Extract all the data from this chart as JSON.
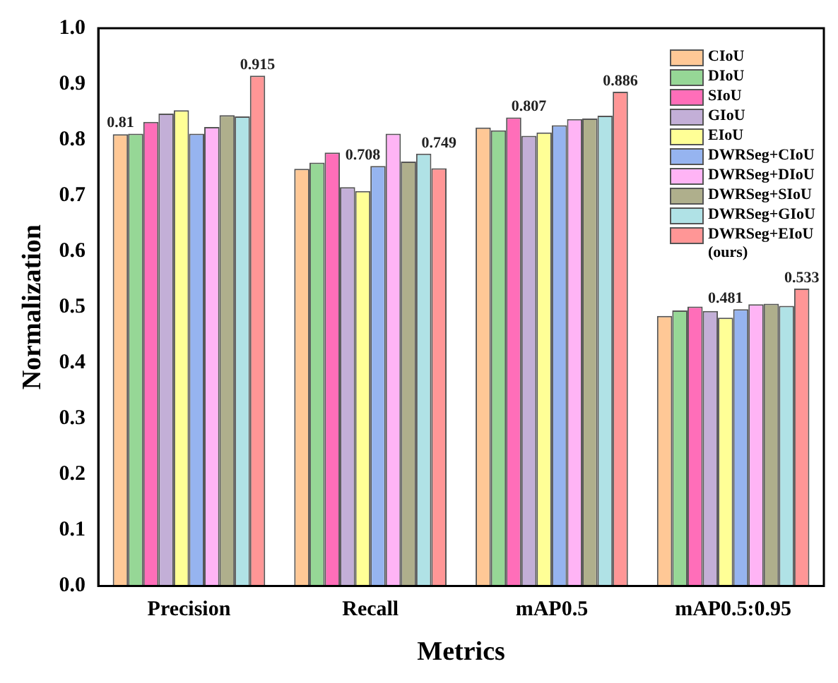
{
  "chart_data": {
    "type": "bar",
    "xlabel": "Metrics",
    "ylabel": "Normalization",
    "categories": [
      "Precision",
      "Recall",
      "mAP0.5",
      "mAP0.5:0.95"
    ],
    "series": [
      {
        "name": "CIoU",
        "color": "#ffc896",
        "values": [
          0.81,
          0.748,
          0.822,
          0.484
        ],
        "value_labels": [
          "0.81",
          null,
          null,
          null
        ]
      },
      {
        "name": "DIoU",
        "color": "#96d796",
        "values": [
          0.811,
          0.759,
          0.817,
          0.494
        ]
      },
      {
        "name": "SIoU",
        "color": "#ff6eb9",
        "values": [
          0.832,
          0.777,
          0.84,
          0.501
        ]
      },
      {
        "name": "GIoU",
        "color": "#c3afd7",
        "values": [
          0.847,
          0.715,
          0.807,
          0.493
        ],
        "value_labels": [
          null,
          null,
          "0.807",
          null
        ]
      },
      {
        "name": "EIoU",
        "color": "#ffff96",
        "values": [
          0.853,
          0.708,
          0.813,
          0.481
        ],
        "value_labels": [
          null,
          "0.708",
          null,
          "0.481"
        ]
      },
      {
        "name": "DWRSeg+CIoU",
        "color": "#96b4f0",
        "values": [
          0.811,
          0.753,
          0.826,
          0.496
        ]
      },
      {
        "name": "DWRSeg+DIoU",
        "color": "#ffb4f5",
        "values": [
          0.823,
          0.811,
          0.837,
          0.505
        ]
      },
      {
        "name": "DWRSeg+SIoU",
        "color": "#afaf8c",
        "values": [
          0.844,
          0.761,
          0.838,
          0.506
        ]
      },
      {
        "name": "DWRSeg+GIoU",
        "color": "#b0e2e6",
        "values": [
          0.842,
          0.775,
          0.843,
          0.502
        ]
      },
      {
        "name": "DWRSeg+EIoU (ours)",
        "color": "#ff9696",
        "values": [
          0.915,
          0.749,
          0.886,
          0.533
        ],
        "value_labels": [
          "0.915",
          "0.749",
          "0.886",
          "0.533"
        ]
      }
    ],
    "ylim": [
      0,
      1.0
    ],
    "yticks": [
      {
        "value": 0,
        "label": "0.0"
      },
      {
        "value": 0.1,
        "label": "0.1"
      },
      {
        "value": 0.2,
        "label": "0.2"
      },
      {
        "value": 0.3,
        "label": "0.3"
      },
      {
        "value": 0.4,
        "label": "0.4"
      },
      {
        "value": 0.5,
        "label": "0.5"
      },
      {
        "value": 0.6,
        "label": "0.6"
      },
      {
        "value": 0.7,
        "label": "0.7"
      },
      {
        "value": 0.8,
        "label": "0.8"
      },
      {
        "value": 0.9,
        "label": "0.9"
      },
      {
        "value": 1.0,
        "label": "1.0"
      }
    ],
    "grid": false,
    "legend": "top right"
  }
}
